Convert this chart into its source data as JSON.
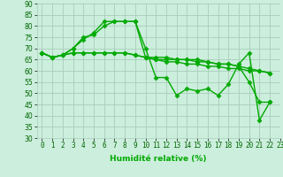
{
  "xlabel": "Humidité relative (%)",
  "xlim": [
    -0.5,
    23
  ],
  "ylim": [
    30,
    90
  ],
  "yticks": [
    30,
    35,
    40,
    45,
    50,
    55,
    60,
    65,
    70,
    75,
    80,
    85,
    90
  ],
  "xticks": [
    0,
    1,
    2,
    3,
    4,
    5,
    6,
    7,
    8,
    9,
    10,
    11,
    12,
    13,
    14,
    15,
    16,
    17,
    18,
    19,
    20,
    21,
    22,
    23
  ],
  "bg_color": "#cceedd",
  "grid_color": "#aaccbb",
  "line_color": "#00aa00",
  "series": [
    [
      68,
      66,
      67,
      70,
      74,
      77,
      82,
      82,
      82,
      82,
      70,
      57,
      57,
      49,
      52,
      51,
      52,
      49,
      54,
      63,
      68,
      38,
      46
    ],
    [
      68,
      66,
      67,
      70,
      75,
      76,
      80,
      82,
      82,
      82,
      66,
      66,
      66,
      65,
      65,
      65,
      64,
      63,
      63,
      62,
      55,
      46,
      46
    ],
    [
      68,
      66,
      67,
      68,
      68,
      68,
      68,
      68,
      68,
      67,
      66,
      65,
      65,
      65,
      65,
      64,
      64,
      63,
      63,
      62,
      61,
      60,
      59
    ],
    [
      68,
      66,
      67,
      68,
      68,
      68,
      68,
      68,
      68,
      67,
      66,
      65,
      64,
      64,
      63,
      63,
      62,
      62,
      61,
      61,
      60,
      60,
      59
    ]
  ],
  "tick_fontsize": 5.5,
  "xlabel_fontsize": 6.5,
  "marker": "D",
  "markersize": 2.5,
  "linewidth": 1.0
}
